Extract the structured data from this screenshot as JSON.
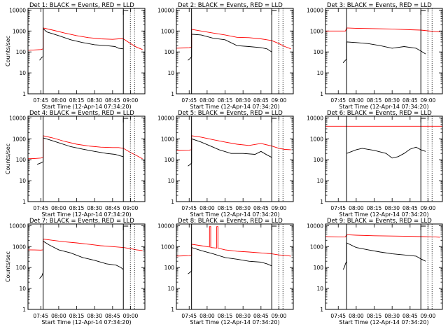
{
  "figure": {
    "xlabel": "Start Time (12-Apr-14 07:34:20)",
    "ylabel": "Counts/sec",
    "x_ticks": [
      "07:45",
      "08:00",
      "08:15",
      "08:30",
      "08:45",
      "09:00"
    ],
    "y_ticks": [
      "1",
      "10",
      "100",
      "1000",
      "10000"
    ],
    "colors": {
      "events": "#000000",
      "lld": "#ff0000",
      "axes": "#000000"
    }
  },
  "chart_data": [
    {
      "type": "line",
      "title": "Det 1: BLACK = Events, RED = LLD",
      "x_ticks": [
        "07:45",
        "08:00",
        "08:15",
        "08:30",
        "08:45",
        "09:00"
      ],
      "xlim": [
        "07:34:20",
        "09:12:00"
      ],
      "ylim": [
        1,
        12000
      ],
      "yscale": "log",
      "vlines": [
        "07:47",
        "08:54"
      ],
      "series": [
        {
          "name": "BLACK = Events",
          "color": "#000000",
          "x": [
            "07:44",
            "07:46",
            "07:47",
            "07:47",
            "07:50",
            "08:00",
            "08:10",
            "08:20",
            "08:30",
            "08:40",
            "08:47",
            "08:50",
            "08:54"
          ],
          "values": [
            40,
            55,
            60,
            1300,
            900,
            600,
            380,
            280,
            220,
            200,
            180,
            150,
            140
          ]
        },
        {
          "name": "RED = LLD",
          "color": "#ff0000",
          "x": [
            "07:34",
            "07:40",
            "07:45",
            "07:47",
            "07:47",
            "07:55",
            "08:05",
            "08:15",
            "08:25",
            "08:35",
            "08:45",
            "08:50",
            "08:54",
            "09:00",
            "09:05",
            "09:10"
          ],
          "values": [
            120,
            125,
            130,
            140,
            1400,
            1100,
            800,
            600,
            480,
            420,
            400,
            420,
            420,
            250,
            170,
            130
          ]
        }
      ]
    },
    {
      "type": "line",
      "title": "Det 2: BLACK = Events, RED = LLD",
      "x_ticks": [
        "07:45",
        "08:00",
        "08:15",
        "08:30",
        "08:45",
        "09:00"
      ],
      "xlim": [
        "07:34:20",
        "09:12:00"
      ],
      "ylim": [
        1,
        12000
      ],
      "yscale": "log",
      "vlines": [
        "07:47",
        "08:54"
      ],
      "series": [
        {
          "name": "BLACK = Events",
          "color": "#000000",
          "x": [
            "07:44",
            "07:46",
            "07:47",
            "07:47",
            "07:55",
            "08:05",
            "08:15",
            "08:25",
            "08:35",
            "08:45",
            "08:50",
            "08:54"
          ],
          "values": [
            40,
            50,
            60,
            700,
            650,
            450,
            380,
            200,
            180,
            160,
            140,
            100
          ]
        },
        {
          "name": "RED = LLD",
          "color": "#ff0000",
          "x": [
            "07:34",
            "07:40",
            "07:45",
            "07:47",
            "07:47",
            "07:55",
            "08:05",
            "08:15",
            "08:25",
            "08:35",
            "08:45",
            "08:54",
            "09:00",
            "09:05",
            "09:10"
          ],
          "values": [
            150,
            155,
            160,
            170,
            1200,
            1000,
            800,
            650,
            500,
            480,
            420,
            350,
            250,
            180,
            140
          ]
        }
      ]
    },
    {
      "type": "line",
      "title": "Det 3: BLACK = Events, RED = LLD",
      "x_ticks": [
        "07:45",
        "08:00",
        "08:15",
        "08:30",
        "08:45",
        "09:00"
      ],
      "xlim": [
        "07:34:20",
        "09:12:00"
      ],
      "ylim": [
        1,
        12000
      ],
      "yscale": "log",
      "vlines": [
        "07:52",
        "08:54"
      ],
      "series": [
        {
          "name": "BLACK = Events",
          "color": "#000000",
          "x": [
            "07:49",
            "07:50",
            "07:51",
            "07:52",
            "07:52",
            "08:00",
            "08:10",
            "08:20",
            "08:30",
            "08:40",
            "08:50",
            "08:54",
            "08:58"
          ],
          "values": [
            30,
            35,
            40,
            45,
            300,
            280,
            250,
            200,
            150,
            180,
            150,
            110,
            80
          ]
        },
        {
          "name": "RED = LLD",
          "color": "#ff0000",
          "x": [
            "07:34",
            "07:45",
            "07:51",
            "07:52",
            "08:00",
            "08:15",
            "08:30",
            "08:45",
            "08:54",
            "09:05",
            "09:10"
          ],
          "values": [
            1000,
            1000,
            1000,
            1400,
            1350,
            1300,
            1250,
            1150,
            1100,
            950,
            900
          ]
        }
      ]
    },
    {
      "type": "line",
      "title": "Det 4: BLACK = Events, RED = LLD",
      "x_ticks": [
        "07:45",
        "08:00",
        "08:15",
        "08:30",
        "08:45",
        "09:00"
      ],
      "xlim": [
        "07:34:20",
        "09:12:00"
      ],
      "ylim": [
        1,
        12000
      ],
      "yscale": "log",
      "vlines": [
        "07:47",
        "08:54"
      ],
      "series": [
        {
          "name": "BLACK = Events",
          "color": "#000000",
          "x": [
            "07:42",
            "07:45",
            "07:47",
            "07:47",
            "07:52",
            "08:00",
            "08:10",
            "08:20",
            "08:30",
            "08:40",
            "08:47",
            "08:52",
            "08:54"
          ],
          "values": [
            60,
            70,
            80,
            1100,
            900,
            650,
            420,
            320,
            250,
            200,
            180,
            150,
            140
          ]
        },
        {
          "name": "RED = LLD",
          "color": "#ff0000",
          "x": [
            "07:34",
            "07:40",
            "07:45",
            "07:47",
            "07:47",
            "07:55",
            "08:05",
            "08:15",
            "08:25",
            "08:35",
            "08:45",
            "08:50",
            "08:54",
            "09:00",
            "09:05",
            "09:10"
          ],
          "values": [
            110,
            115,
            120,
            130,
            1400,
            1100,
            750,
            550,
            450,
            400,
            380,
            380,
            350,
            220,
            160,
            110
          ]
        }
      ]
    },
    {
      "type": "line",
      "title": "Det 5: BLACK = Events, RED = LLD",
      "x_ticks": [
        "07:45",
        "08:00",
        "08:15",
        "08:30",
        "08:45",
        "09:00"
      ],
      "xlim": [
        "07:34:20",
        "09:12:00"
      ],
      "ylim": [
        1,
        12000
      ],
      "yscale": "log",
      "vlines": [
        "07:47",
        "08:54"
      ],
      "series": [
        {
          "name": "BLACK = Events",
          "color": "#000000",
          "x": [
            "07:44",
            "07:46",
            "07:47",
            "07:47",
            "07:55",
            "08:05",
            "08:10",
            "08:20",
            "08:30",
            "08:40",
            "08:45",
            "08:50",
            "08:54"
          ],
          "values": [
            50,
            60,
            70,
            1000,
            700,
            400,
            300,
            200,
            200,
            180,
            250,
            170,
            130
          ]
        },
        {
          "name": "RED = LLD",
          "color": "#ff0000",
          "x": [
            "07:34",
            "07:40",
            "07:45",
            "07:47",
            "07:47",
            "07:55",
            "08:05",
            "08:15",
            "08:25",
            "08:35",
            "08:45",
            "08:54",
            "09:00",
            "09:05",
            "09:10"
          ],
          "values": [
            280,
            285,
            290,
            300,
            1400,
            1200,
            900,
            700,
            550,
            480,
            600,
            450,
            350,
            310,
            300
          ]
        }
      ]
    },
    {
      "type": "line",
      "title": "Det 6: BLACK = Events, RED = LLD",
      "x_ticks": [
        "07:45",
        "08:00",
        "08:15",
        "08:30",
        "08:45",
        "09:00"
      ],
      "xlim": [
        "07:34:20",
        "09:12:00"
      ],
      "ylim": [
        1,
        12000
      ],
      "yscale": "log",
      "vlines": [
        "07:52",
        "08:54"
      ],
      "series": [
        {
          "name": "BLACK = Events",
          "color": "#000000",
          "x": [
            "07:52",
            "08:00",
            "08:05",
            "08:15",
            "08:25",
            "08:30",
            "08:35",
            "08:40",
            "08:45",
            "08:50",
            "08:54",
            "08:58"
          ],
          "values": [
            200,
            300,
            350,
            280,
            200,
            120,
            140,
            200,
            320,
            400,
            300,
            250
          ]
        },
        {
          "name": "RED = LLD",
          "color": "#ff0000",
          "x": [
            "07:34",
            "09:12"
          ],
          "values": [
            4000,
            4000
          ]
        }
      ]
    },
    {
      "type": "line",
      "title": "Det 7: BLACK = Events, RED = LLD",
      "x_ticks": [
        "07:45",
        "08:00",
        "08:15",
        "08:30",
        "08:45",
        "09:00"
      ],
      "xlim": [
        "07:34:20",
        "09:12:00"
      ],
      "ylim": [
        1,
        12000
      ],
      "yscale": "log",
      "vlines": [
        "07:47",
        "08:54"
      ],
      "series": [
        {
          "name": "BLACK = Events",
          "color": "#000000",
          "x": [
            "07:44",
            "07:46",
            "07:47",
            "07:47",
            "07:52",
            "08:00",
            "08:10",
            "08:20",
            "08:30",
            "08:40",
            "08:48",
            "08:52",
            "08:54"
          ],
          "values": [
            30,
            40,
            60,
            1800,
            1200,
            700,
            500,
            300,
            220,
            150,
            130,
            100,
            80
          ]
        },
        {
          "name": "RED = LLD",
          "color": "#ff0000",
          "x": [
            "07:34",
            "07:40",
            "07:45",
            "07:47",
            "07:47",
            "07:55",
            "08:05",
            "08:15",
            "08:25",
            "08:35",
            "08:45",
            "08:54",
            "09:00",
            "09:05",
            "09:10"
          ],
          "values": [
            700,
            690,
            680,
            700,
            2300,
            2000,
            1700,
            1500,
            1300,
            1100,
            1000,
            900,
            800,
            700,
            650
          ]
        }
      ]
    },
    {
      "type": "line",
      "title": "Det 8: BLACK = Events, RED = LLD",
      "x_ticks": [
        "07:45",
        "08:00",
        "08:15",
        "08:30",
        "08:45",
        "09:00"
      ],
      "xlim": [
        "07:34:20",
        "09:12:00"
      ],
      "ylim": [
        1,
        12000
      ],
      "yscale": "log",
      "vlines": [
        "07:47",
        "08:54"
      ],
      "series": [
        {
          "name": "BLACK = Events",
          "color": "#000000",
          "x": [
            "07:44",
            "07:46",
            "07:47",
            "07:47",
            "07:55",
            "08:05",
            "08:15",
            "08:25",
            "08:35",
            "08:45",
            "08:50",
            "08:54"
          ],
          "values": [
            50,
            60,
            70,
            900,
            650,
            450,
            300,
            250,
            200,
            180,
            150,
            120
          ]
        },
        {
          "name": "RED = LLD",
          "color": "#ff0000",
          "x": [
            "07:34",
            "07:40",
            "07:45",
            "07:47",
            "07:47",
            "07:55",
            "08:02",
            "08:02",
            "08:03",
            "08:03",
            "08:08",
            "08:08",
            "08:09",
            "08:09",
            "08:15",
            "08:25",
            "08:35",
            "08:45",
            "08:54",
            "09:00",
            "09:05",
            "09:10"
          ],
          "values": [
            350,
            360,
            370,
            380,
            1300,
            1100,
            950,
            9000,
            9000,
            900,
            850,
            9000,
            9000,
            850,
            700,
            600,
            550,
            500,
            450,
            400,
            380,
            350
          ]
        }
      ]
    },
    {
      "type": "line",
      "title": "Det 9: BLACK = Events, RED = LLD",
      "x_ticks": [
        "07:45",
        "08:00",
        "08:15",
        "08:30",
        "08:45",
        "09:00"
      ],
      "xlim": [
        "07:34:20",
        "09:12:00"
      ],
      "ylim": [
        1,
        12000
      ],
      "yscale": "log",
      "vlines": [
        "07:52",
        "08:54"
      ],
      "series": [
        {
          "name": "BLACK = Events",
          "color": "#000000",
          "x": [
            "07:49",
            "07:50",
            "07:51",
            "07:52",
            "07:52",
            "08:00",
            "08:10",
            "08:20",
            "08:30",
            "08:40",
            "08:50",
            "08:54",
            "08:58"
          ],
          "values": [
            80,
            100,
            150,
            200,
            1500,
            900,
            700,
            550,
            450,
            400,
            350,
            260,
            200
          ]
        },
        {
          "name": "RED = LLD",
          "color": "#ff0000",
          "x": [
            "07:34",
            "07:45",
            "07:51",
            "07:52",
            "08:00",
            "08:15",
            "08:30",
            "08:45",
            "08:54",
            "09:05",
            "09:10"
          ],
          "values": [
            3000,
            2900,
            2900,
            3700,
            3500,
            3300,
            3200,
            3100,
            3000,
            2900,
            2800
          ]
        }
      ]
    }
  ]
}
